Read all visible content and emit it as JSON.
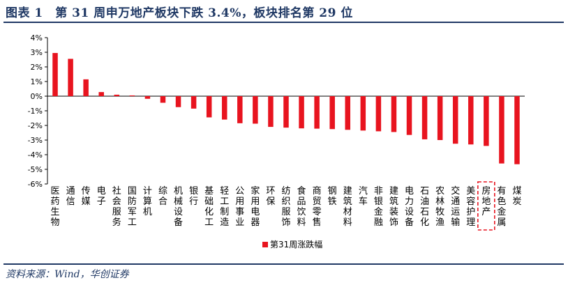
{
  "header": {
    "title": "图表 1　第 31 周申万地产板块下跌 3.4%，板块排名第 29 位"
  },
  "footer": {
    "source": "资料来源：Wind，华创证券"
  },
  "chart_data": {
    "type": "bar",
    "title": "",
    "xlabel": "",
    "ylabel": "",
    "ylim": [
      -6,
      4
    ],
    "yticks": [
      "4%",
      "3%",
      "2%",
      "1%",
      "0%",
      "-1%",
      "-2%",
      "-3%",
      "-4%",
      "-5%",
      "-6%"
    ],
    "grid": false,
    "legend_position": "bottom",
    "categories": [
      "医药生物",
      "通信",
      "传媒",
      "电子",
      "社会服务",
      "国防军工",
      "计算机",
      "综合",
      "机械设备",
      "银行",
      "基础化工",
      "轻工制造",
      "公用事业",
      "家用电器",
      "环保",
      "纺织服饰",
      "食品饮料",
      "商贸零售",
      "钢铁",
      "建筑材料",
      "汽车",
      "非银金融",
      "建筑装饰",
      "电力设备",
      "石油石化",
      "农林牧渔",
      "交通运输",
      "美容护理",
      "房地产",
      "有色金属",
      "煤炭"
    ],
    "series": [
      {
        "name": "第31周涨跌幅",
        "color": "#e8141f",
        "values": [
          2.95,
          2.55,
          1.15,
          0.28,
          0.1,
          0.05,
          -0.18,
          -0.45,
          -0.75,
          -0.85,
          -1.45,
          -1.6,
          -1.85,
          -1.88,
          -2.1,
          -2.15,
          -2.2,
          -2.22,
          -2.25,
          -2.3,
          -2.35,
          -2.4,
          -2.45,
          -2.65,
          -2.95,
          -3.0,
          -3.25,
          -3.3,
          -3.4,
          -4.6,
          -4.65
        ]
      }
    ],
    "highlight_category": "房地产",
    "highlight_color": "#e8141f"
  }
}
